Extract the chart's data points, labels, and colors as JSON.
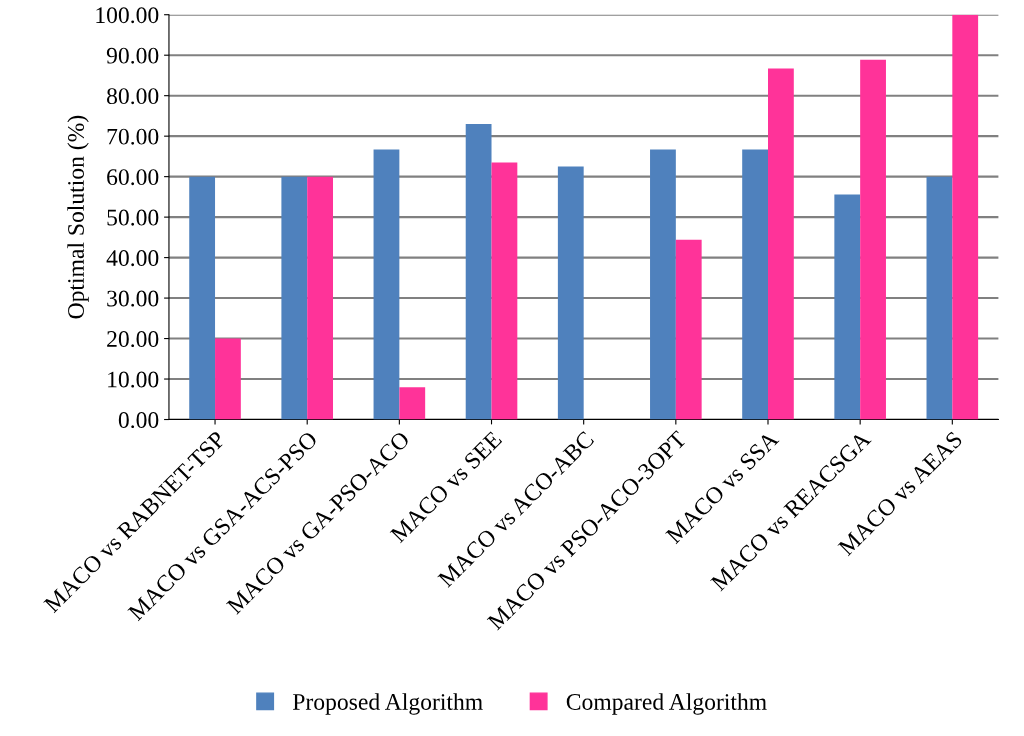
{
  "chart_data": {
    "type": "bar",
    "ylabel": "Optimal Solution (%)",
    "categories": [
      "MACO vs RABNET-TSP",
      "MACO vs GSA-ACS-PSO",
      "MACO vs GA-PSO-ACO",
      "MACO vs SEE",
      "MACO vs ACO-ABC",
      "MACO vs PSO-ACO-3OPT",
      "MACO vs SSA",
      "MACO vs REACSGA",
      "MACO vs AEAS"
    ],
    "series": [
      {
        "name": "Proposed Algorithm",
        "color": "#4f81bd",
        "values": [
          60,
          60,
          66.7,
          73,
          62.5,
          66.7,
          66.7,
          55.6,
          60
        ]
      },
      {
        "name": "Compared Algorithm",
        "color": "#ff3399",
        "values": [
          20,
          60,
          8,
          63.5,
          0,
          44.4,
          86.7,
          88.9,
          100
        ]
      }
    ],
    "ylim": [
      0,
      100
    ],
    "yticks": [
      {
        "value": 0,
        "label": "0.00"
      },
      {
        "value": 10,
        "label": "10.00"
      },
      {
        "value": 20,
        "label": "20.00"
      },
      {
        "value": 30,
        "label": "30.00"
      },
      {
        "value": 40,
        "label": "40.00"
      },
      {
        "value": 50,
        "label": "50.00"
      },
      {
        "value": 60,
        "label": "60.00"
      },
      {
        "value": 70,
        "label": "70.00"
      },
      {
        "value": 80,
        "label": "80.00"
      },
      {
        "value": 90,
        "label": "90.00"
      },
      {
        "value": 100,
        "label": "100.00"
      }
    ],
    "grid": "y",
    "legend": "bottom"
  }
}
